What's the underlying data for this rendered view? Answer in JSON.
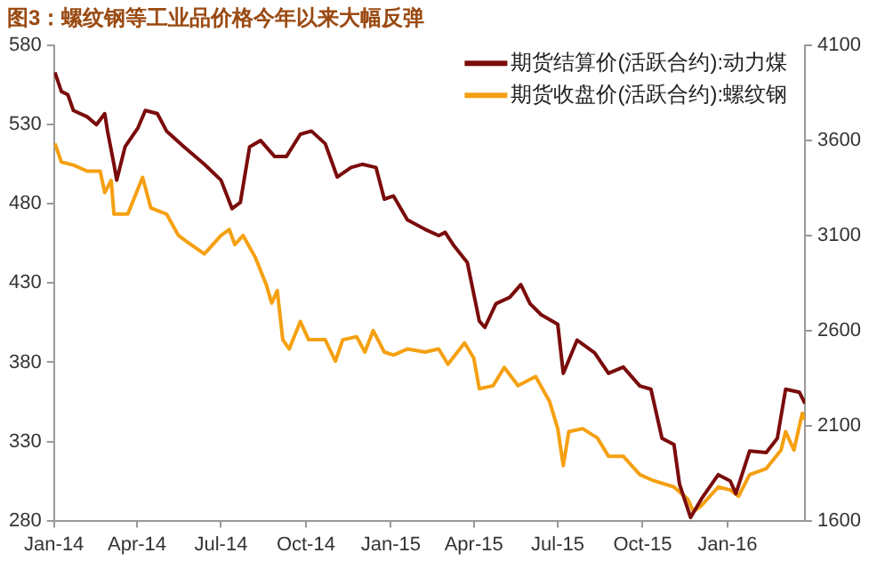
{
  "chart_data": {
    "type": "line",
    "title": "图3：螺纹钢等工业品价格今年以来大幅反弹",
    "legend": "top right",
    "grid": false,
    "marker": "none",
    "line_style": "solid",
    "xlim": [
      "2014-01-01",
      "2016-03-25"
    ],
    "xticks": [
      {
        "value": "2014-01-01",
        "label": "Jan-14"
      },
      {
        "value": "2014-04-01",
        "label": "Apr-14"
      },
      {
        "value": "2014-07-01",
        "label": "Jul-14"
      },
      {
        "value": "2014-10-01",
        "label": "Oct-14"
      },
      {
        "value": "2015-01-01",
        "label": "Jan-15"
      },
      {
        "value": "2015-04-01",
        "label": "Apr-15"
      },
      {
        "value": "2015-07-01",
        "label": "Jul-15"
      },
      {
        "value": "2015-10-01",
        "label": "Oct-15"
      },
      {
        "value": "2016-01-01",
        "label": "Jan-16"
      }
    ],
    "ylim": [
      280,
      580
    ],
    "yticks": [
      280,
      330,
      380,
      430,
      480,
      530,
      580
    ],
    "y2lim": [
      1600,
      4100
    ],
    "y2ticks": [
      1600,
      2100,
      2600,
      3100,
      3600,
      4100
    ],
    "series": [
      {
        "name": "期货结算价(活跃合约):动力煤",
        "color": "#7b0c0c",
        "x": [
          "2014-01-02",
          "2014-01-09",
          "2014-01-16",
          "2014-01-22",
          "2014-02-06",
          "2014-02-16",
          "2014-02-25",
          "2014-02-28",
          "2014-03-07",
          "2014-03-10",
          "2014-03-19",
          "2014-04-02",
          "2014-04-10",
          "2014-04-23",
          "2014-05-03",
          "2014-05-22",
          "2014-06-13",
          "2014-07-01",
          "2014-07-13",
          "2014-07-22",
          "2014-08-01",
          "2014-08-13",
          "2014-08-28",
          "2014-09-10",
          "2014-09-25",
          "2014-10-07",
          "2014-10-22",
          "2014-11-04",
          "2014-11-19",
          "2014-12-01",
          "2014-12-16",
          "2014-12-25",
          "2015-01-04",
          "2015-01-19",
          "2015-02-07",
          "2015-02-22",
          "2015-03-01",
          "2015-03-10",
          "2015-03-25",
          "2015-04-07",
          "2015-04-13",
          "2015-04-25",
          "2015-05-10",
          "2015-05-22",
          "2015-06-01",
          "2015-06-13",
          "2015-07-01",
          "2015-07-07",
          "2015-07-22",
          "2015-08-10",
          "2015-08-25",
          "2015-09-10",
          "2015-09-28",
          "2015-10-10",
          "2015-10-22",
          "2015-11-04",
          "2015-11-10",
          "2015-11-22",
          "2015-12-04",
          "2015-12-22",
          "2016-01-04",
          "2016-01-10",
          "2016-01-25",
          "2016-02-12",
          "2016-02-24",
          "2016-03-04",
          "2016-03-19",
          "2016-03-25"
        ],
        "values": [
          563,
          551,
          549,
          539,
          535,
          530,
          537,
          526,
          505,
          495,
          516,
          528,
          539,
          537,
          526,
          516,
          505,
          495,
          477,
          481,
          516,
          520,
          510,
          510,
          524,
          526,
          518,
          497,
          503,
          505,
          503,
          483,
          485,
          470,
          464,
          460,
          462,
          454,
          443,
          406,
          402,
          417,
          421,
          429,
          417,
          410,
          404,
          373,
          394,
          386,
          373,
          377,
          365,
          363,
          332,
          328,
          303,
          282,
          294,
          309,
          305,
          297,
          324,
          323,
          332,
          363,
          361,
          354
        ]
      },
      {
        "name": "期货收盘价(活跃合约):螺纹钢",
        "color": "#f5a011",
        "axis": "y2",
        "x": [
          "2014-01-02",
          "2014-01-09",
          "2014-01-22",
          "2014-02-06",
          "2014-02-20",
          "2014-02-25",
          "2014-03-04",
          "2014-03-07",
          "2014-03-22",
          "2014-04-07",
          "2014-04-16",
          "2014-05-03",
          "2014-05-16",
          "2014-05-25",
          "2014-06-13",
          "2014-07-01",
          "2014-07-10",
          "2014-07-16",
          "2014-07-25",
          "2014-08-07",
          "2014-08-19",
          "2014-08-25",
          "2014-08-31",
          "2014-09-06",
          "2014-09-13",
          "2014-09-25",
          "2014-10-04",
          "2014-10-22",
          "2014-11-02",
          "2014-11-10",
          "2014-11-25",
          "2014-12-04",
          "2014-12-13",
          "2014-12-25",
          "2015-01-04",
          "2015-01-19",
          "2015-02-07",
          "2015-02-22",
          "2015-03-04",
          "2015-03-22",
          "2015-04-01",
          "2015-04-07",
          "2015-04-22",
          "2015-05-04",
          "2015-05-19",
          "2015-06-07",
          "2015-06-22",
          "2015-07-01",
          "2015-07-07",
          "2015-07-13",
          "2015-07-28",
          "2015-08-13",
          "2015-08-25",
          "2015-09-10",
          "2015-09-28",
          "2015-10-13",
          "2015-11-04",
          "2015-11-19",
          "2015-11-25",
          "2015-12-04",
          "2015-12-22",
          "2016-01-04",
          "2016-01-13",
          "2016-01-25",
          "2016-02-12",
          "2016-02-28",
          "2016-03-04",
          "2016-03-13",
          "2016-03-22",
          "2016-03-25"
        ],
        "values": [
          3584,
          3487,
          3471,
          3439,
          3439,
          3326,
          3390,
          3213,
          3213,
          3406,
          3245,
          3213,
          3100,
          3068,
          3003,
          3100,
          3132,
          3052,
          3100,
          2987,
          2842,
          2745,
          2810,
          2552,
          2503,
          2648,
          2552,
          2552,
          2439,
          2552,
          2568,
          2487,
          2600,
          2487,
          2471,
          2503,
          2487,
          2503,
          2423,
          2535,
          2455,
          2294,
          2310,
          2406,
          2310,
          2358,
          2229,
          2084,
          1890,
          2068,
          2084,
          2035,
          1939,
          1939,
          1842,
          1810,
          1777,
          1713,
          1648,
          1681,
          1777,
          1761,
          1729,
          1842,
          1874,
          1971,
          2068,
          1971,
          2165,
          2132
        ]
      }
    ]
  }
}
